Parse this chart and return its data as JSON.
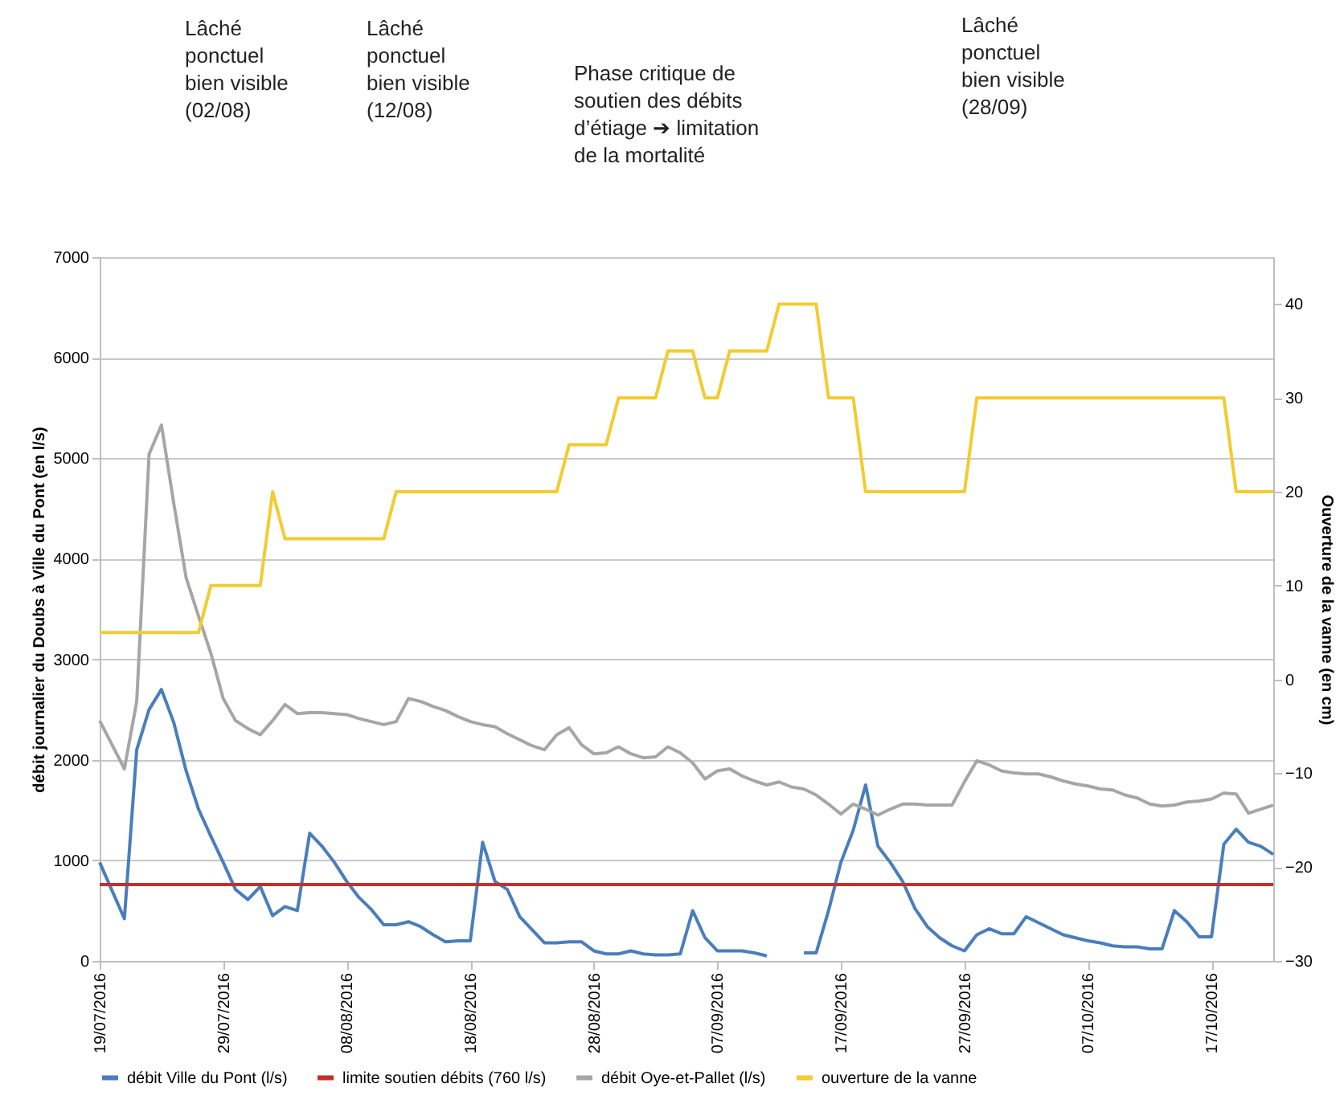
{
  "chart_data": {
    "type": "line",
    "ylabel": "débit journalier du Doubs à Ville du Pont (en l/s)",
    "y2label": "Ouverture de la vanne (en cm)",
    "annotations": [
      "Lâché\nponctuel\nbien visible\n(02/08)",
      "Lâché\nponctuel\nbien visible\n(12/08)",
      "Phase critique de\nsoutien des débits\nd’étiage ➔ limitation\nde la mortalité",
      "Lâché\nponctuel\nbien visible\n(28/09)"
    ],
    "x": [
      "2016-07-19",
      "2016-07-20",
      "2016-07-21",
      "2016-07-22",
      "2016-07-23",
      "2016-07-24",
      "2016-07-25",
      "2016-07-26",
      "2016-07-27",
      "2016-07-28",
      "2016-07-29",
      "2016-07-30",
      "2016-07-31",
      "2016-08-01",
      "2016-08-02",
      "2016-08-03",
      "2016-08-04",
      "2016-08-05",
      "2016-08-06",
      "2016-08-07",
      "2016-08-08",
      "2016-08-09",
      "2016-08-10",
      "2016-08-11",
      "2016-08-12",
      "2016-08-13",
      "2016-08-14",
      "2016-08-15",
      "2016-08-16",
      "2016-08-17",
      "2016-08-18",
      "2016-08-19",
      "2016-08-20",
      "2016-08-21",
      "2016-08-22",
      "2016-08-23",
      "2016-08-24",
      "2016-08-25",
      "2016-08-26",
      "2016-08-27",
      "2016-08-28",
      "2016-08-29",
      "2016-08-30",
      "2016-08-31",
      "2016-09-01",
      "2016-09-02",
      "2016-09-03",
      "2016-09-04",
      "2016-09-05",
      "2016-09-06",
      "2016-09-07",
      "2016-09-08",
      "2016-09-09",
      "2016-09-10",
      "2016-09-11",
      "2016-09-12",
      "2016-09-13",
      "2016-09-14",
      "2016-09-15",
      "2016-09-16",
      "2016-09-17",
      "2016-09-18",
      "2016-09-19",
      "2016-09-20",
      "2016-09-21",
      "2016-09-22",
      "2016-09-23",
      "2016-09-24",
      "2016-09-25",
      "2016-09-26",
      "2016-09-27",
      "2016-09-28",
      "2016-09-29",
      "2016-09-30",
      "2016-10-01",
      "2016-10-02",
      "2016-10-03",
      "2016-10-04",
      "2016-10-05",
      "2016-10-06",
      "2016-10-07",
      "2016-10-08",
      "2016-10-09",
      "2016-10-10",
      "2016-10-11",
      "2016-10-12",
      "2016-10-13",
      "2016-10-14",
      "2016-10-15",
      "2016-10-16",
      "2016-10-17",
      "2016-10-18",
      "2016-10-19",
      "2016-10-20",
      "2016-10-21",
      "2016-10-22"
    ],
    "series": [
      {
        "name": "débit Ville du Pont (l/s)",
        "color": "#4a7ebb",
        "values": [
          980,
          700,
          420,
          2100,
          2500,
          2700,
          2370,
          1890,
          1510,
          1240,
          980,
          710,
          610,
          740,
          450,
          540,
          500,
          1270,
          1140,
          980,
          790,
          630,
          510,
          360,
          360,
          390,
          340,
          260,
          190,
          200,
          200,
          1180,
          790,
          710,
          440,
          310,
          180,
          180,
          190,
          190,
          100,
          70,
          70,
          100,
          70,
          60,
          60,
          70,
          500,
          230,
          100,
          100,
          100,
          80,
          50,
          null,
          null,
          80,
          80,
          500,
          980,
          1300,
          1750,
          1140,
          980,
          790,
          520,
          340,
          230,
          150,
          100,
          260,
          320,
          270,
          270,
          440,
          380,
          320,
          260,
          230,
          200,
          180,
          150,
          140,
          140,
          120,
          120,
          500,
          390,
          240,
          240,
          1160,
          1310,
          1180,
          1140,
          1060
        ]
      },
      {
        "name": "limite soutien débits (760 l/s)",
        "color": "#c0312b",
        "x": [
          "2016-07-19",
          "2016-10-22"
        ],
        "values": [
          760,
          760
        ]
      },
      {
        "name": "débit Oye-et-Pallet (l/s)",
        "color": "#a6a6a6",
        "values": [
          2390,
          2150,
          1910,
          2580,
          5040,
          5330,
          4550,
          3810,
          3430,
          3060,
          2610,
          2390,
          2310,
          2250,
          2390,
          2550,
          2460,
          2470,
          2470,
          2460,
          2450,
          2410,
          2380,
          2350,
          2380,
          2610,
          2580,
          2530,
          2490,
          2430,
          2380,
          2350,
          2330,
          2260,
          2200,
          2140,
          2100,
          2250,
          2320,
          2150,
          2060,
          2070,
          2130,
          2060,
          2020,
          2030,
          2130,
          2070,
          1970,
          1810,
          1890,
          1910,
          1840,
          1790,
          1750,
          1780,
          1730,
          1710,
          1650,
          1560,
          1460,
          1560,
          1510,
          1450,
          1510,
          1560,
          1560,
          1550,
          1550,
          1550,
          1780,
          1990,
          1950,
          1890,
          1870,
          1860,
          1860,
          1830,
          1790,
          1760,
          1740,
          1710,
          1700,
          1650,
          1620,
          1560,
          1540,
          1550,
          1580,
          1590,
          1610,
          1670,
          1660,
          1470,
          1510,
          1550
        ]
      },
      {
        "name": "ouverture de la vanne",
        "color": "#f2cc30",
        "axis": "y2",
        "values": [
          5,
          5,
          5,
          5,
          5,
          5,
          5,
          5,
          5,
          10,
          10,
          10,
          10,
          10,
          20,
          15,
          15,
          15,
          15,
          15,
          15,
          15,
          15,
          15,
          20,
          20,
          20,
          20,
          20,
          20,
          20,
          20,
          20,
          20,
          20,
          20,
          20,
          20,
          25,
          25,
          25,
          25,
          30,
          30,
          30,
          30,
          35,
          35,
          35,
          30,
          30,
          35,
          35,
          35,
          35,
          40,
          40,
          40,
          40,
          30,
          30,
          30,
          20,
          20,
          20,
          20,
          20,
          20,
          20,
          20,
          20,
          30,
          30,
          30,
          30,
          30,
          30,
          30,
          30,
          30,
          30,
          30,
          30,
          30,
          30,
          30,
          30,
          30,
          30,
          30,
          30,
          30,
          20,
          20,
          20,
          20
        ]
      }
    ],
    "xlim": [
      "2016-07-19",
      "2016-10-22"
    ],
    "xticks": [
      {
        "value": "2016-07-19",
        "label": "19/07/2016"
      },
      {
        "value": "2016-07-29",
        "label": "29/07/2016"
      },
      {
        "value": "2016-08-08",
        "label": "08/08/2016"
      },
      {
        "value": "2016-08-18",
        "label": "18/08/2016"
      },
      {
        "value": "2016-08-28",
        "label": "28/08/2016"
      },
      {
        "value": "2016-09-07",
        "label": "07/09/2016"
      },
      {
        "value": "2016-09-17",
        "label": "17/09/2016"
      },
      {
        "value": "2016-09-27",
        "label": "27/09/2016"
      },
      {
        "value": "2016-10-07",
        "label": "07/10/2016"
      },
      {
        "value": "2016-10-17",
        "label": "17/10/2016"
      }
    ],
    "ylim": [
      0,
      7000
    ],
    "yticks": [
      0,
      1000,
      2000,
      3000,
      4000,
      5000,
      6000,
      7000
    ],
    "y2lim": [
      -30,
      45
    ],
    "y2ticks": [
      -30,
      -20,
      -10,
      0,
      10,
      20,
      30,
      40
    ],
    "grid": "y",
    "legend": "bottom",
    "marker": "none",
    "line_style": "solid"
  }
}
